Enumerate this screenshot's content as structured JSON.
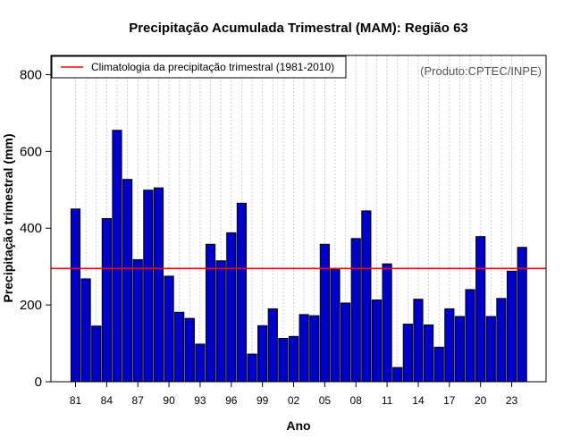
{
  "colors": {
    "bar_fill": "#0000cc",
    "bar_stroke": "#000000",
    "climatology_line": "#ff0000",
    "grid": "#cccccc",
    "credit_text": "#555555"
  },
  "chart_data": {
    "type": "bar",
    "title": "Precipitação Acumulada Trimestral (MAM): Região 63",
    "xlabel": "Ano",
    "ylabel": "Precipitação trimestral (mm)",
    "ylim": [
      0,
      850
    ],
    "yticks": [
      0,
      200,
      400,
      600,
      800
    ],
    "grid": "vertical dotted lines at each year",
    "legend_position": "top-left",
    "legend": [
      "Climatologia da precipitação trimestral (1981-2010)"
    ],
    "credit": "(Produto:CPTEC/INPE)",
    "climatology": 295,
    "categories": [
      "81",
      "82",
      "83",
      "84",
      "85",
      "86",
      "87",
      "88",
      "89",
      "90",
      "91",
      "92",
      "93",
      "94",
      "95",
      "96",
      "97",
      "98",
      "99",
      "00",
      "01",
      "02",
      "03",
      "04",
      "05",
      "06",
      "07",
      "08",
      "09",
      "10",
      "11",
      "12",
      "13",
      "14",
      "15",
      "16",
      "17",
      "18",
      "19",
      "20",
      "21",
      "22",
      "23",
      "24"
    ],
    "xtick_labels": [
      "81",
      "84",
      "87",
      "90",
      "93",
      "96",
      "99",
      "02",
      "05",
      "08",
      "11",
      "14",
      "17",
      "20",
      "23"
    ],
    "values": [
      450,
      268,
      145,
      425,
      655,
      527,
      318,
      499,
      505,
      275,
      181,
      165,
      98,
      358,
      315,
      388,
      465,
      72,
      146,
      190,
      113,
      118,
      175,
      172,
      358,
      292,
      205,
      373,
      445,
      213,
      307,
      37,
      150,
      215,
      148,
      90,
      190,
      170,
      240,
      378,
      170,
      217,
      288,
      350
    ]
  }
}
